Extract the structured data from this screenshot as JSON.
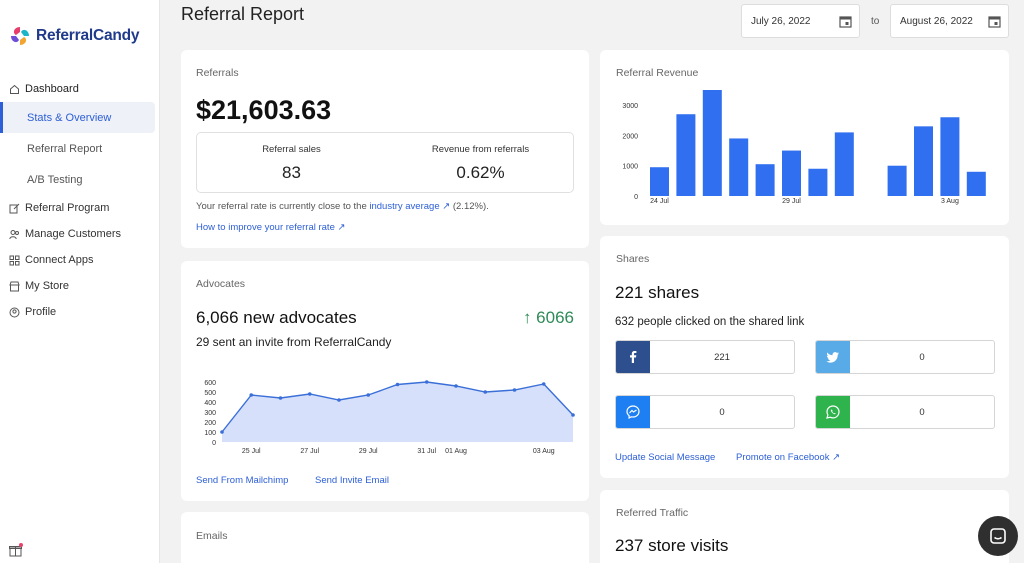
{
  "app": {
    "name": "ReferralCandy"
  },
  "sidebar": {
    "dashboard": "Dashboard",
    "sub_items": [
      {
        "label": "Stats & Overview",
        "active": true
      },
      {
        "label": "Referral Report",
        "active": false
      },
      {
        "label": "A/B Testing",
        "active": false
      }
    ],
    "items": [
      {
        "label": "Referral Program",
        "icon": "edit-icon"
      },
      {
        "label": "Manage Customers",
        "icon": "users-icon"
      },
      {
        "label": "Connect Apps",
        "icon": "apps-icon"
      },
      {
        "label": "My Store",
        "icon": "store-icon"
      },
      {
        "label": "Profile",
        "icon": "profile-icon"
      }
    ]
  },
  "header": {
    "title": "Referral Report",
    "date_from": "July 26, 2022",
    "date_to": "August 26, 2022",
    "to_label": "to"
  },
  "referrals": {
    "label": "Referrals",
    "amount": "$21,603.63",
    "sales_label": "Referral sales",
    "sales_value": "83",
    "revenue_label": "Revenue from referrals",
    "revenue_value": "0.62%",
    "note_prefix": "Your referral rate is currently close to the",
    "note_link": "industry average ↗",
    "note_suffix": "(2.12%).",
    "improve_link": "How to improve your referral rate ↗"
  },
  "advocates": {
    "label": "Advocates",
    "title": "6,066 new advocates",
    "count": "↑ 6066",
    "subtitle": "29 sent an invite from ReferralCandy",
    "link_mailchimp": "Send From Mailchimp",
    "link_invite": "Send Invite Email",
    "chart_data": {
      "type": "area",
      "y_ticks": [
        "600",
        "500",
        "400",
        "300",
        "200",
        "100",
        "0"
      ],
      "ylim": [
        0,
        600
      ],
      "x_tick_labels": [
        "25 Jul",
        "27 Jul",
        "29 Jul",
        "31 Jul",
        "01 Aug",
        "03 Aug"
      ],
      "values": [
        100,
        470,
        440,
        480,
        420,
        470,
        575,
        600,
        560,
        500,
        520,
        580,
        270
      ],
      "color": "#3b6fd8",
      "fill": "#d6e0fa"
    }
  },
  "emails": {
    "label": "Emails"
  },
  "revenue": {
    "label": "Referral Revenue",
    "chart_data": {
      "type": "bar",
      "y_ticks": [
        "3000",
        "2000",
        "1000",
        "0"
      ],
      "ylim": [
        0,
        3500
      ],
      "x_tick_labels": [
        "24 Jul",
        "29 Jul",
        "3 Aug"
      ],
      "values": [
        950,
        2700,
        3650,
        1900,
        1050,
        1500,
        900,
        2100,
        0,
        1000,
        2300,
        2600,
        800
      ],
      "color": "#2f6ff0"
    }
  },
  "shares": {
    "label": "Shares",
    "title": "221 shares",
    "subtitle": "632 people clicked on the shared link",
    "buttons": [
      {
        "network": "facebook",
        "icon": "facebook-icon",
        "count": "221",
        "color": "#2d4f8e"
      },
      {
        "network": "twitter",
        "icon": "twitter-icon",
        "count": "0",
        "color": "#59abe8"
      },
      {
        "network": "messenger",
        "icon": "messenger-icon",
        "count": "0",
        "color": "#1d7ff2"
      },
      {
        "network": "whatsapp",
        "icon": "whatsapp-icon",
        "count": "0",
        "color": "#2fb34c"
      }
    ],
    "link_update": "Update Social Message",
    "link_promote": "Promote on Facebook ↗"
  },
  "traffic": {
    "label": "Referred Traffic",
    "title": "237 store visits"
  }
}
